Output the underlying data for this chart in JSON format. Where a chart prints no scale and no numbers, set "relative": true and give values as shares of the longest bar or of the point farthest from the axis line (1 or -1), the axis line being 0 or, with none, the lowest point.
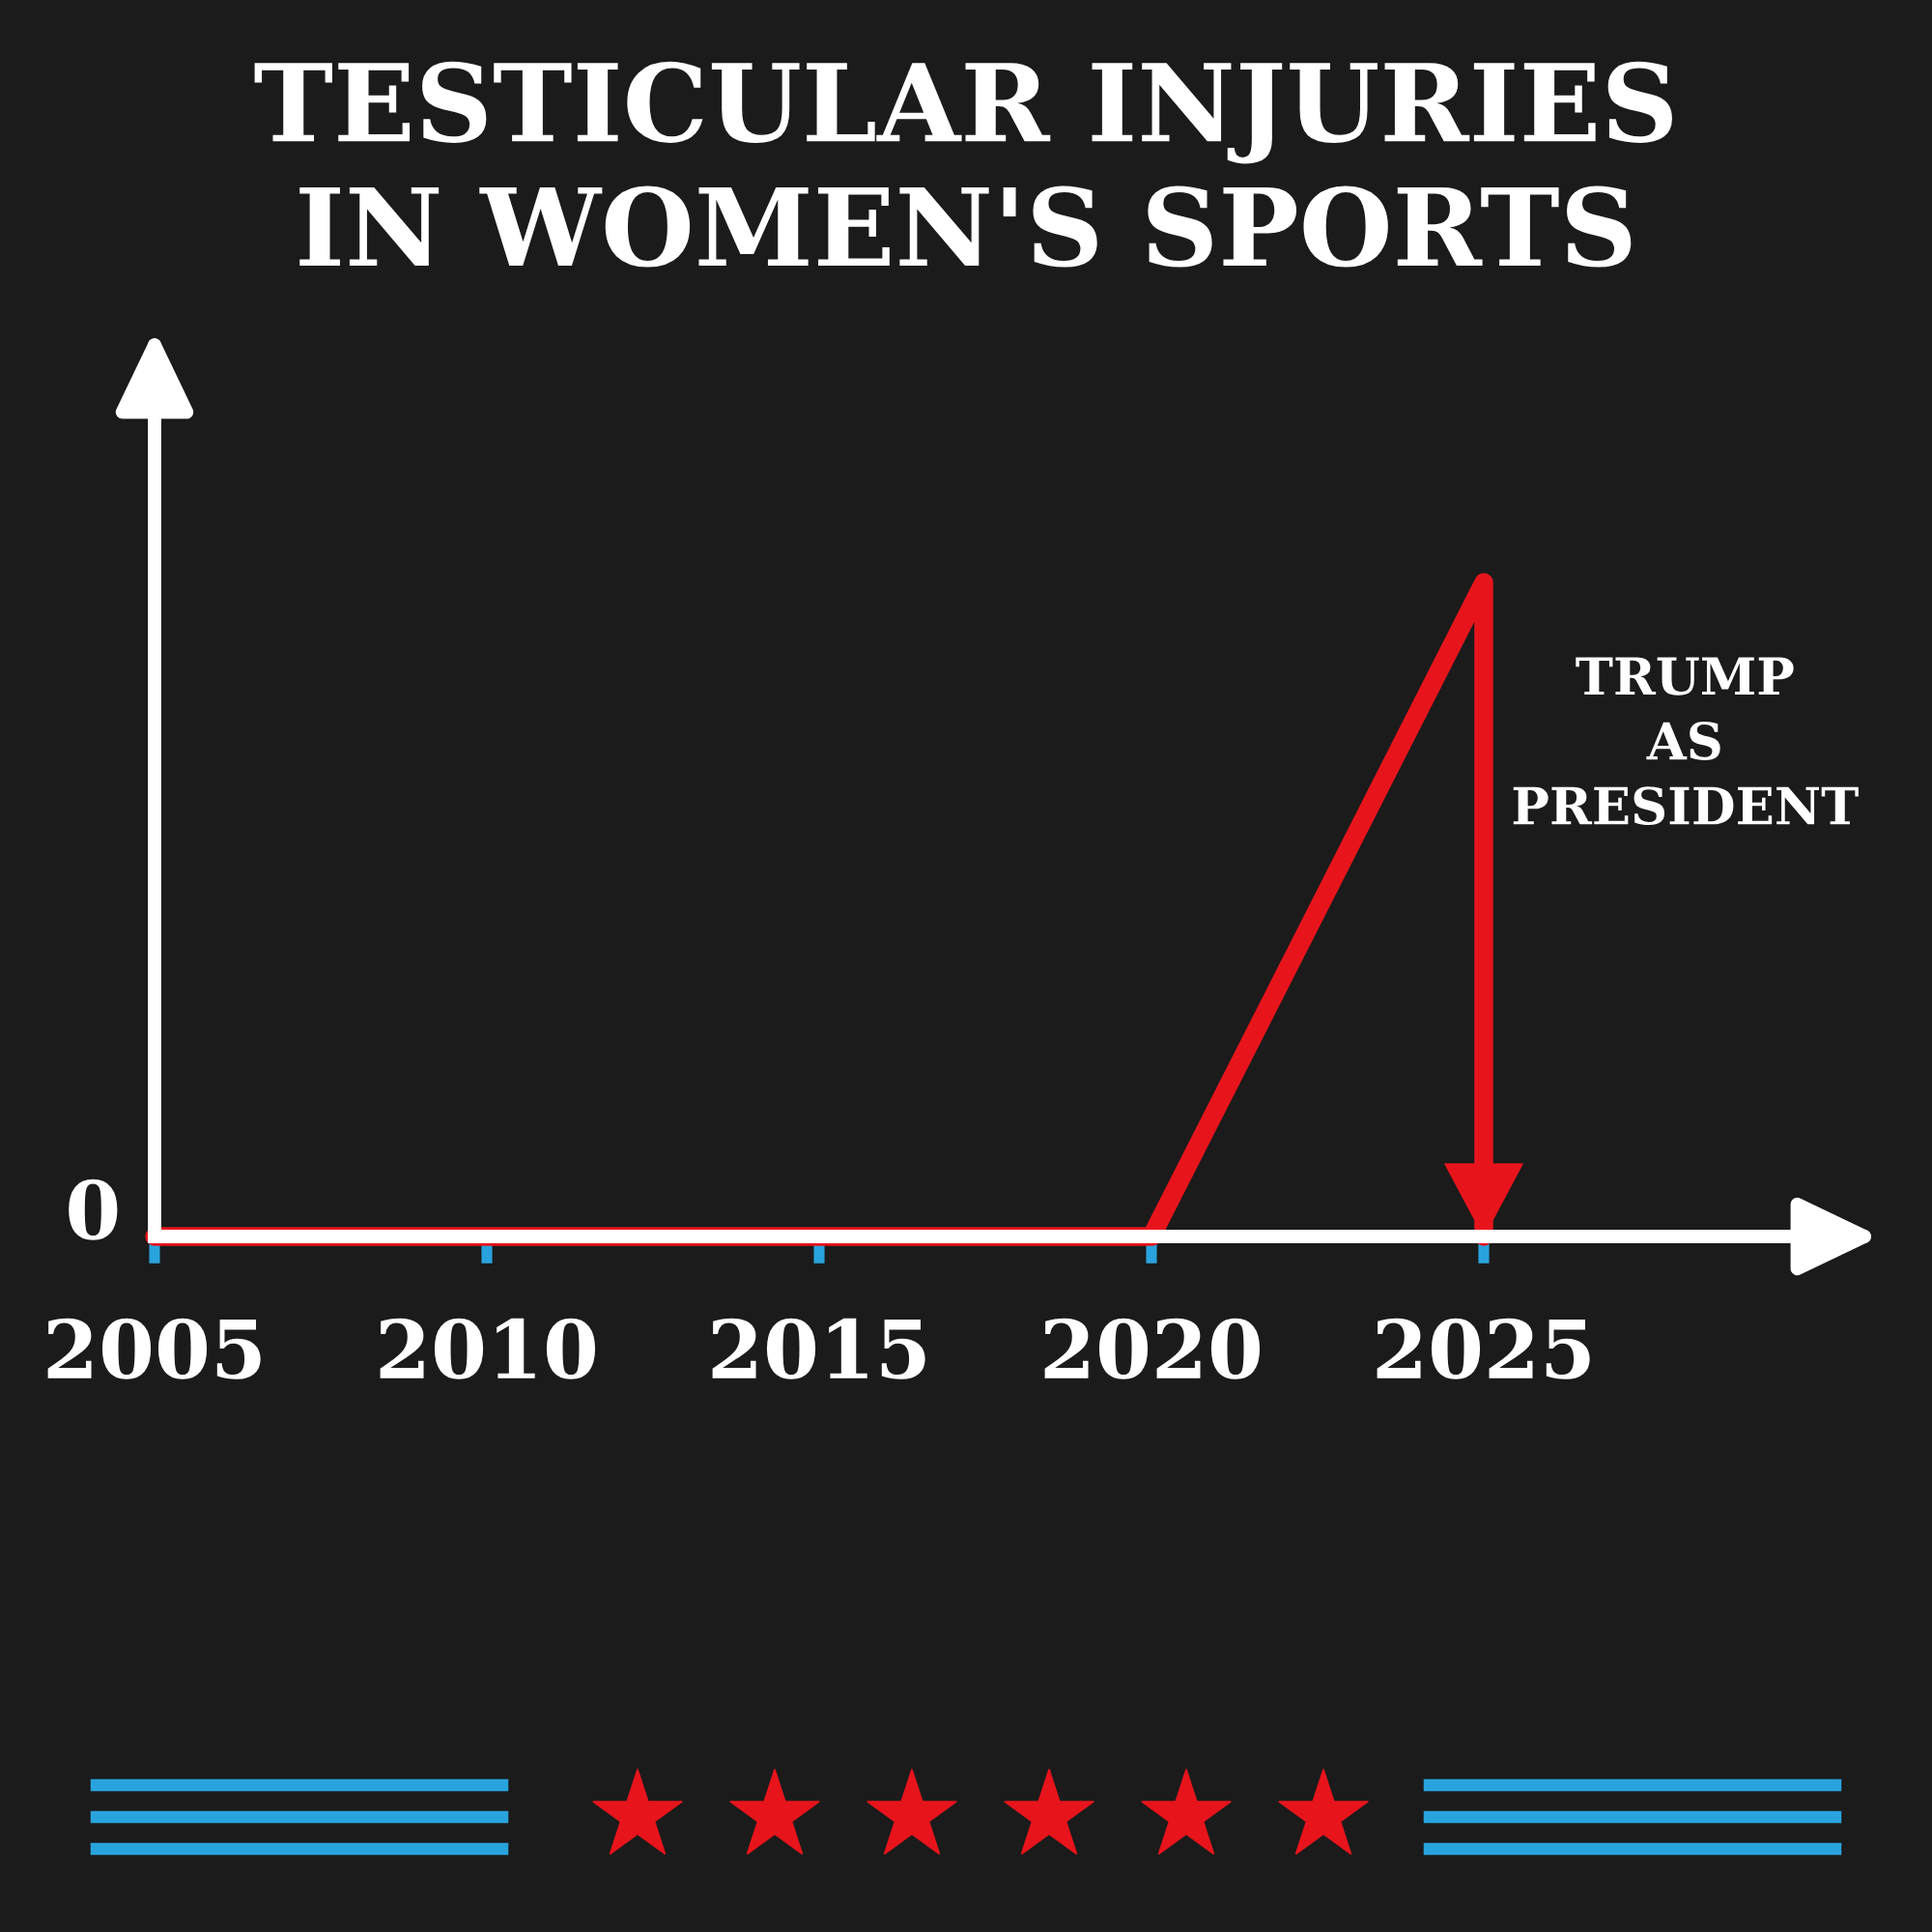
{
  "chart_data": {
    "type": "line",
    "title": "TESTICULAR INJURIES\nIN WOMEN'S SPORTS",
    "x": [
      2005,
      2020,
      2025,
      2025
    ],
    "series": [
      {
        "color": "#e8141c",
        "values": [
          0,
          0,
          1,
          0
        ]
      }
    ],
    "relative": true,
    "xlim": [
      2005,
      2030
    ],
    "xticks": [
      2005,
      2010,
      2015,
      2020,
      2025
    ],
    "annotations": [
      "0",
      {
        "text": "TRUMP\nAS\nPRESIDENT",
        "x": 2025,
        "y": 0.45
      }
    ]
  }
}
